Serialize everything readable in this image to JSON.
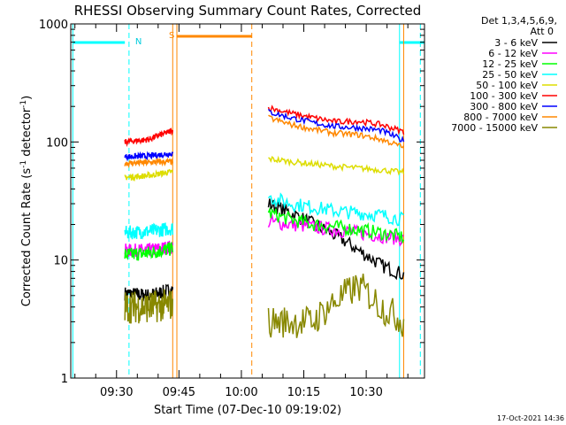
{
  "chart_data": {
    "type": "line",
    "title": "RHESSI Observing Summary Count Rates, Corrected",
    "xlabel": "Start Time (07-Dec-10 09:19:02)",
    "ylabel_main": "Corrected Count Rate (s",
    "ylabel_sup1": "-1",
    "ylabel_mid": " detector",
    "ylabel_sup2": "-1",
    "ylabel_end": ")",
    "y_scale": "log",
    "ylim": [
      1,
      1000
    ],
    "xlim_minutes": [
      19,
      104
    ],
    "y_ticks": [
      {
        "value": 1,
        "label": "1"
      },
      {
        "value": 10,
        "label": "10"
      },
      {
        "value": 100,
        "label": "100"
      },
      {
        "value": 1000,
        "label": "1000"
      }
    ],
    "x_ticks": [
      {
        "minute": 30,
        "label": "09:30"
      },
      {
        "minute": 45,
        "label": "09:45"
      },
      {
        "minute": 60,
        "label": "10:00"
      },
      {
        "minute": 75,
        "label": "10:15"
      },
      {
        "minute": 90,
        "label": "10:30"
      },
      {
        "minute": 105,
        "label": "10:45"
      }
    ],
    "legend_header": [
      "Det 1,3,4,5,6,9,",
      "Att 0"
    ],
    "legend_placement": "right",
    "series": [
      {
        "name": "3 - 6 keV",
        "color": "#000000",
        "seg1": [
          5.2,
          5.0,
          5.6
        ],
        "seg2": [
          30,
          25,
          20,
          16,
          12,
          9,
          7.5
        ]
      },
      {
        "name": "6 - 12 keV",
        "color": "#ff00ff",
        "seg1": [
          12,
          12,
          13
        ],
        "seg2": [
          21,
          20,
          19,
          18,
          17,
          16,
          15
        ]
      },
      {
        "name": "12 - 25 keV",
        "color": "#00ff00",
        "seg1": [
          11,
          11.5,
          12.5
        ],
        "seg2": [
          25,
          22,
          20,
          19,
          18,
          17,
          15.5
        ]
      },
      {
        "name": "25 - 50 keV",
        "color": "#00ffff",
        "seg1": [
          17,
          17.5,
          18.5
        ],
        "seg2": [
          34,
          30,
          28,
          26,
          25,
          24,
          22
        ]
      },
      {
        "name": "50 - 100 keV",
        "color": "#dddd00",
        "seg1": [
          50,
          52,
          56
        ],
        "seg2": [
          72,
          68,
          65,
          62,
          60,
          58,
          55
        ]
      },
      {
        "name": "100 - 300 keV",
        "color": "#ff0000",
        "seg1": [
          100,
          105,
          125
        ],
        "seg2": [
          195,
          175,
          160,
          148,
          150,
          140,
          122
        ]
      },
      {
        "name": "300 - 800 keV",
        "color": "#0000ff",
        "seg1": [
          75,
          76,
          80
        ],
        "seg2": [
          180,
          160,
          145,
          135,
          132,
          125,
          102
        ]
      },
      {
        "name": "800 - 7000 keV",
        "color": "#ff8800",
        "seg1": [
          66,
          67,
          68
        ],
        "seg2": [
          160,
          140,
          128,
          118,
          115,
          105,
          90
        ]
      },
      {
        "name": "7000 - 15000 keV",
        "color": "#888800",
        "seg1": [
          4,
          4,
          4.2
        ],
        "seg2": [
          3,
          3,
          3,
          4.5,
          6,
          4,
          3
        ]
      }
    ],
    "segments": {
      "seg1_minutes": [
        32,
        43.5
      ],
      "seg2_minutes": [
        66.5,
        99
      ]
    },
    "markers": {
      "night_label": "N",
      "saa_label": "S",
      "night_bars_minutes": [
        [
          19.5,
          32
        ],
        [
          98,
          104
        ]
      ],
      "saa_bar_minutes": [
        [
          44.5,
          62.5
        ]
      ],
      "night_lines_minutes": [
        19.5,
        33,
        98,
        103
      ],
      "saa_lines_minutes": [
        43.5,
        44.5,
        62.5,
        99
      ]
    },
    "timestamp": "17-Oct-2021 14:36"
  }
}
